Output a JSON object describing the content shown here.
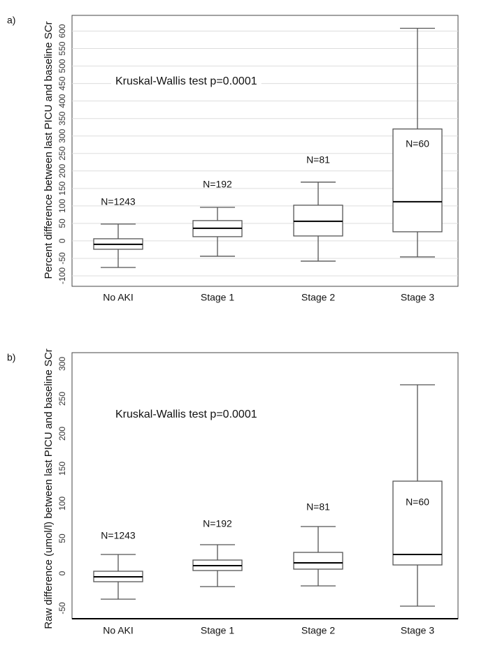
{
  "chart_data": [
    {
      "type": "box",
      "panel": "a)",
      "ylabel": "Percent difference between last PICU and baseline SCr",
      "annotation": "Kruskal-Wallis test p=0.0001",
      "categories": [
        "No AKI",
        "Stage 1",
        "Stage 2",
        "Stage 3"
      ],
      "n_labels": [
        "N=1243",
        "N=192",
        "N=81",
        "N=60"
      ],
      "min": [
        -76,
        -44,
        -58,
        -46
      ],
      "q1": [
        -24,
        12,
        14,
        26
      ],
      "median": [
        -10,
        36,
        56,
        112
      ],
      "q3": [
        6,
        58,
        102,
        320
      ],
      "max": [
        48,
        96,
        168,
        608
      ],
      "ylim": [
        -130,
        645
      ],
      "yticks": [
        -100,
        -50,
        0,
        50,
        100,
        150,
        200,
        250,
        300,
        350,
        400,
        450,
        500,
        550,
        600
      ],
      "grid": true
    },
    {
      "type": "box",
      "panel": "b)",
      "ylabel": "Raw difference (umol/l) between last PICU and baseline SCr",
      "annotation": "Kruskal-Wallis test p=0.0001",
      "categories": [
        "No AKI",
        "Stage 1",
        "Stage 2",
        "Stage 3"
      ],
      "n_labels": [
        "N=1243",
        "N=192",
        "N=81",
        "N=60"
      ],
      "min": [
        -37,
        -19,
        -18,
        -47
      ],
      "q1": [
        -12,
        4,
        6,
        12
      ],
      "median": [
        -5,
        11,
        15,
        27
      ],
      "q3": [
        3,
        19,
        30,
        132
      ],
      "max": [
        27,
        41,
        67,
        270
      ],
      "ylim": [
        -65,
        316
      ],
      "yticks": [
        -50,
        0,
        50,
        100,
        150,
        200,
        250,
        300
      ],
      "grid": false
    }
  ]
}
